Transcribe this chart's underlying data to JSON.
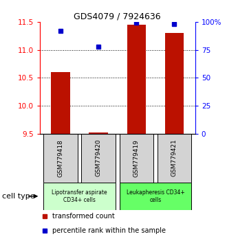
{
  "title": "GDS4079 / 7924636",
  "samples": [
    "GSM779418",
    "GSM779420",
    "GSM779419",
    "GSM779421"
  ],
  "red_values": [
    10.6,
    9.52,
    11.45,
    11.3
  ],
  "blue_values": [
    92,
    78,
    99,
    98
  ],
  "ylim_left": [
    9.5,
    11.5
  ],
  "ylim_right": [
    0,
    100
  ],
  "yticks_left": [
    9.5,
    10.0,
    10.5,
    11.0,
    11.5
  ],
  "yticks_right": [
    0,
    25,
    50,
    75,
    100
  ],
  "ytick_labels_right": [
    "0",
    "25",
    "50",
    "75",
    "100%"
  ],
  "red_color": "#bb1100",
  "blue_color": "#0000cc",
  "bar_width": 0.5,
  "groups": [
    {
      "label": "Lipotransfer aspirate\nCD34+ cells",
      "color": "#ccffcc",
      "start": 0,
      "end": 1
    },
    {
      "label": "Leukapheresis CD34+\ncells",
      "color": "#66ff66",
      "start": 2,
      "end": 3
    }
  ],
  "cell_type_label": "cell type",
  "legend_red": "transformed count",
  "legend_blue": "percentile rank within the sample",
  "sample_box_color": "#d3d3d3",
  "x_positions": [
    0,
    1,
    2,
    3
  ],
  "xlim": [
    -0.55,
    3.55
  ]
}
